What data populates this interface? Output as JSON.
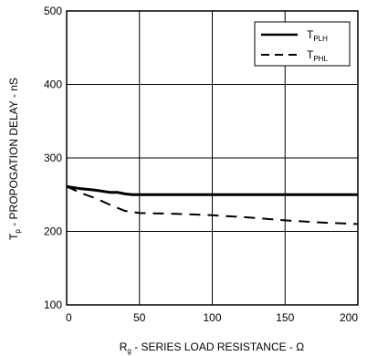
{
  "chart_data": {
    "type": "line",
    "xlabel": {
      "main": "R",
      "sub": "g",
      "rest": " - SERIES LOAD RESISTANCE - Ω"
    },
    "ylabel": {
      "main": "T",
      "sub": "p",
      "rest": " - PROPOGATION DELAY - nS"
    },
    "xlim": [
      0,
      200
    ],
    "ylim": [
      100,
      500
    ],
    "xticks": [
      0,
      50,
      100,
      150,
      200
    ],
    "yticks": [
      100,
      200,
      300,
      400,
      500
    ],
    "grid": true,
    "legend_position": "top-right",
    "series": [
      {
        "name": {
          "main": "T",
          "sub": "PLH"
        },
        "style": "solid",
        "color": "#000000",
        "x": [
          0,
          10,
          20,
          30,
          35,
          40,
          45,
          50,
          100,
          150,
          200
        ],
        "y": [
          261,
          258,
          256,
          253,
          253,
          251,
          250,
          250,
          250,
          250,
          250
        ]
      },
      {
        "name": {
          "main": "T",
          "sub": "PHL"
        },
        "style": "dashed",
        "color": "#000000",
        "x": [
          0,
          10,
          20,
          30,
          40,
          50,
          75,
          100,
          125,
          150,
          175,
          200
        ],
        "y": [
          261,
          252,
          245,
          236,
          228,
          225,
          224,
          222,
          219,
          215,
          212,
          210
        ]
      }
    ]
  }
}
